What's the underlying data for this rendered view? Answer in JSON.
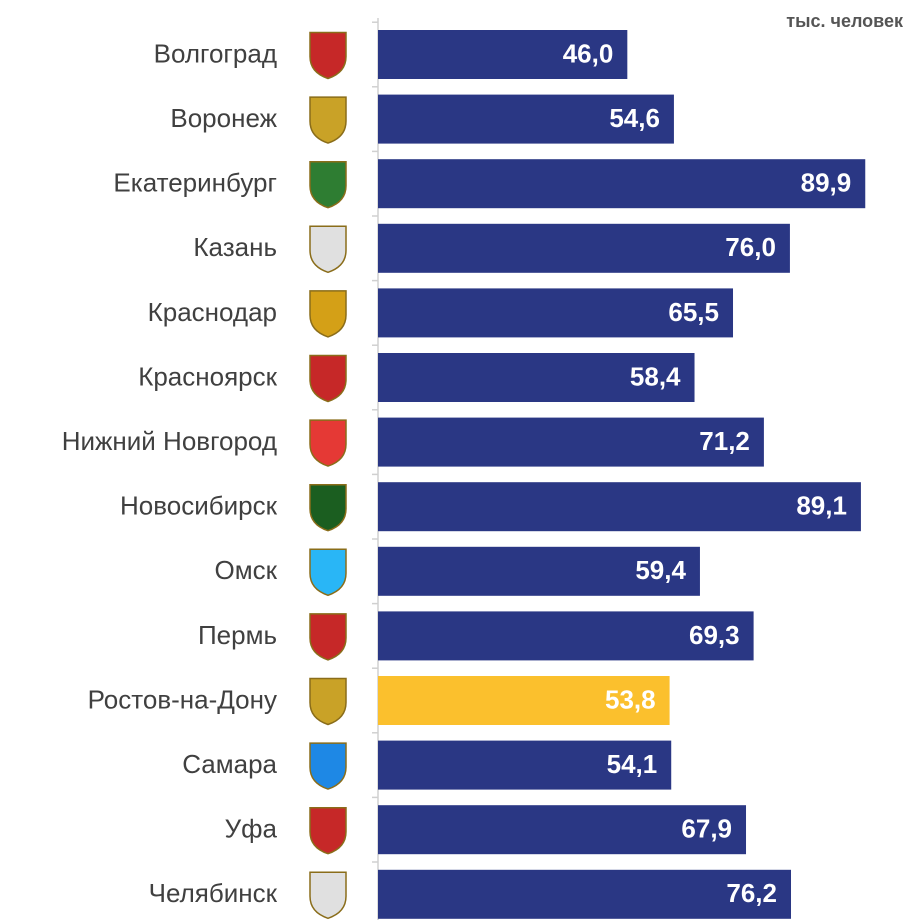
{
  "chart_data": {
    "type": "barh",
    "unit_label": "тыс. человек",
    "categories": [
      "Волгоград",
      "Воронеж",
      "Екатеринбург",
      "Казань",
      "Краснодар",
      "Красноярск",
      "Нижний Новгород",
      "Новосибирск",
      "Омск",
      "Пермь",
      "Ростов-на-Дону",
      "Самара",
      "Уфа",
      "Челябинск"
    ],
    "values": [
      46.0,
      54.6,
      89.9,
      76.0,
      65.5,
      58.4,
      71.2,
      89.1,
      59.4,
      69.3,
      53.8,
      54.1,
      67.9,
      76.2
    ],
    "value_labels": [
      "46,0",
      "54,6",
      "89,9",
      "76,0",
      "65,5",
      "58,4",
      "71,2",
      "89,1",
      "59,4",
      "69,3",
      "53,8",
      "54,1",
      "67,9",
      "76,2"
    ],
    "colors": [
      "#2a3784",
      "#2a3784",
      "#2a3784",
      "#2a3784",
      "#2a3784",
      "#2a3784",
      "#2a3784",
      "#2a3784",
      "#2a3784",
      "#2a3784",
      "#fbc02d",
      "#2a3784",
      "#2a3784",
      "#2a3784"
    ],
    "xlim": [
      0,
      100
    ]
  }
}
